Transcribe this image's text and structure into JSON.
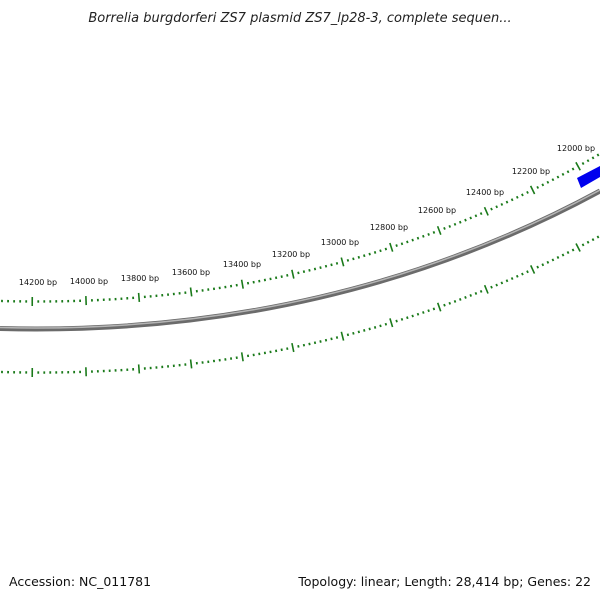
{
  "title": "Borrelia burgdorferi ZS7 plasmid ZS7_lp28-3, complete sequen...",
  "footer": {
    "accession": "Accession: NC_011781",
    "summary": "Topology: linear; Length: 28,414 bp; Genes: 22"
  },
  "colors": {
    "backbone_dark": "#6b6b6b",
    "backbone_light": "#b5b5b5",
    "tick": "#1a7a1a",
    "gene": "#0000ee"
  },
  "scale_labels": [
    "14200 bp",
    "14000 bp",
    "13800 bp",
    "13600 bp",
    "13400 bp",
    "13200 bp",
    "13000 bp",
    "12800 bp",
    "12600 bp",
    "12400 bp",
    "12200 bp",
    "12000 bp"
  ]
}
